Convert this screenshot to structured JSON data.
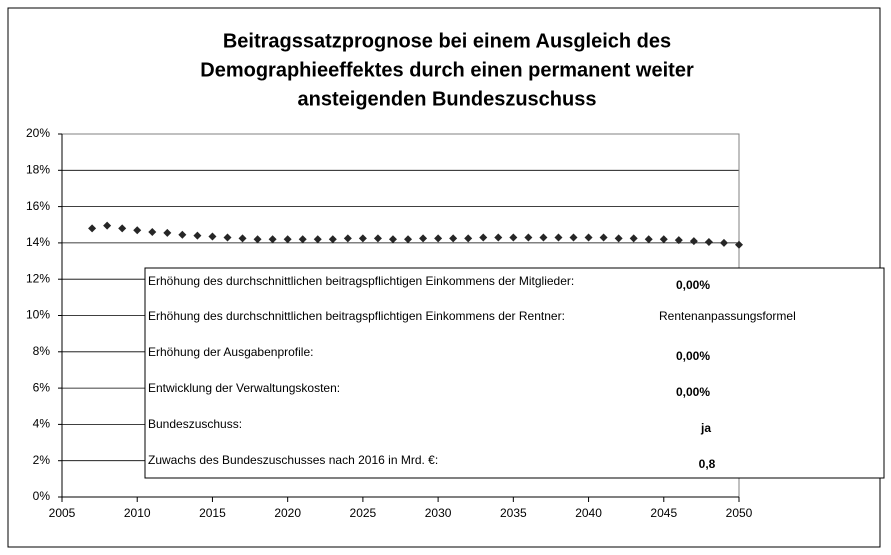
{
  "chart_data": {
    "type": "scatter",
    "title": [
      "Beitragssatzprognose bei einem Ausgleich des",
      "Demographieeffektes durch einen permanent weiter",
      "ansteigenden Bundeszuschuss"
    ],
    "x": [
      2007,
      2008,
      2009,
      2010,
      2011,
      2012,
      2013,
      2014,
      2015,
      2016,
      2017,
      2018,
      2019,
      2020,
      2021,
      2022,
      2023,
      2024,
      2025,
      2026,
      2027,
      2028,
      2029,
      2030,
      2031,
      2032,
      2033,
      2034,
      2035,
      2036,
      2037,
      2038,
      2039,
      2040,
      2041,
      2042,
      2043,
      2044,
      2045,
      2046,
      2047,
      2048,
      2049,
      2050
    ],
    "values": [
      14.8,
      14.95,
      14.8,
      14.7,
      14.6,
      14.55,
      14.45,
      14.4,
      14.35,
      14.3,
      14.25,
      14.2,
      14.2,
      14.2,
      14.2,
      14.2,
      14.2,
      14.25,
      14.25,
      14.25,
      14.2,
      14.2,
      14.25,
      14.25,
      14.25,
      14.25,
      14.3,
      14.3,
      14.3,
      14.3,
      14.3,
      14.3,
      14.3,
      14.3,
      14.3,
      14.25,
      14.25,
      14.2,
      14.2,
      14.15,
      14.1,
      14.05,
      14.0,
      13.9
    ],
    "color": "#262626",
    "xlim": [
      2005,
      2050
    ],
    "xticks": [
      2005,
      2010,
      2015,
      2020,
      2025,
      2030,
      2035,
      2040,
      2045,
      2050
    ],
    "ylim": [
      0,
      20
    ],
    "yticks": [
      {
        "value": 0,
        "label": "0%"
      },
      {
        "value": 2,
        "label": "2%"
      },
      {
        "value": 4,
        "label": "4%"
      },
      {
        "value": 6,
        "label": "6%"
      },
      {
        "value": 8,
        "label": "8%"
      },
      {
        "value": 10,
        "label": "10%"
      },
      {
        "value": 12,
        "label": "12%"
      },
      {
        "value": 14,
        "label": "14%"
      },
      {
        "value": 16,
        "label": "16%"
      },
      {
        "value": 18,
        "label": "18%"
      },
      {
        "value": 20,
        "label": "20%"
      }
    ],
    "grid": true,
    "annotations": [
      {
        "label": "Erhöhung des durchschnittlichen beitragspflichtigen Einkommens der Mitglieder:",
        "value": "0,00%"
      },
      {
        "label": "Erhöhung des durchschnittlichen beitragspflichtigen Einkommens der Rentner:",
        "value": "Rentenanpassungsformel"
      },
      {
        "label": "Erhöhung der Ausgabenprofile:",
        "value": "0,00%"
      },
      {
        "label": "Entwicklung der Verwaltungskosten:",
        "value": "0,00%"
      },
      {
        "label": "Bundeszuschuss:",
        "value": "ja"
      },
      {
        "label": "Zuwachs des Bundeszuschusses nach 2016 in Mrd. €:",
        "value": "0,8"
      }
    ]
  }
}
